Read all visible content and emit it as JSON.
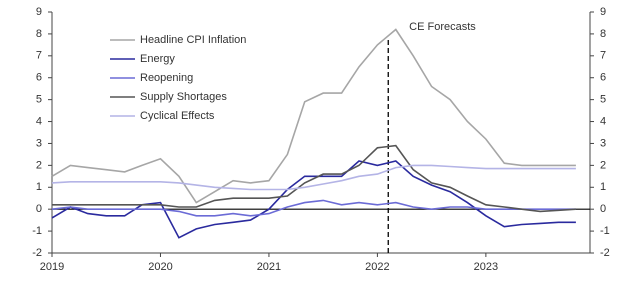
{
  "chart_data": {
    "type": "line",
    "x": [
      2019.0,
      2019.17,
      2019.33,
      2019.5,
      2019.67,
      2019.83,
      2020.0,
      2020.17,
      2020.33,
      2020.5,
      2020.67,
      2020.83,
      2021.0,
      2021.17,
      2021.33,
      2021.5,
      2021.67,
      2021.83,
      2022.0,
      2022.17,
      2022.33,
      2022.5,
      2022.67,
      2022.83,
      2023.0,
      2023.17,
      2023.33,
      2023.5,
      2023.67,
      2023.83
    ],
    "series": [
      {
        "name": "Headline CPI Inflation",
        "color": "#a6a6a6",
        "values": [
          1.5,
          2.0,
          1.9,
          1.8,
          1.7,
          2.0,
          2.3,
          1.5,
          0.3,
          0.8,
          1.3,
          1.2,
          1.3,
          2.5,
          4.9,
          5.3,
          5.3,
          6.5,
          7.5,
          8.2,
          7.0,
          5.6,
          5.0,
          4.0,
          3.2,
          2.1,
          2.0,
          2.0,
          2.0,
          2.0
        ]
      },
      {
        "name": "Energy",
        "color": "#2a2a9e",
        "values": [
          -0.4,
          0.1,
          -0.2,
          -0.3,
          -0.3,
          0.2,
          0.3,
          -1.3,
          -0.9,
          -0.7,
          -0.6,
          -0.5,
          0.0,
          0.9,
          1.5,
          1.5,
          1.5,
          2.2,
          2.0,
          2.2,
          1.5,
          1.1,
          0.8,
          0.3,
          -0.3,
          -0.8,
          -0.7,
          -0.65,
          -0.6,
          -0.6
        ]
      },
      {
        "name": "Reopening",
        "color": "#6b6bd6",
        "values": [
          0.0,
          0.1,
          0.0,
          0.0,
          0.0,
          0.0,
          0.0,
          -0.1,
          -0.3,
          -0.3,
          -0.2,
          -0.3,
          -0.2,
          0.1,
          0.3,
          0.4,
          0.2,
          0.3,
          0.2,
          0.3,
          0.1,
          0.0,
          0.1,
          0.1,
          0.0,
          0.0,
          0.0,
          0.0,
          0.0,
          0.0
        ]
      },
      {
        "name": "Supply Shortages",
        "color": "#555555",
        "values": [
          0.2,
          0.2,
          0.2,
          0.2,
          0.2,
          0.2,
          0.2,
          0.1,
          0.1,
          0.4,
          0.5,
          0.5,
          0.5,
          0.6,
          1.2,
          1.6,
          1.6,
          2.0,
          2.8,
          2.9,
          1.8,
          1.2,
          1.0,
          0.6,
          0.2,
          0.1,
          0.0,
          -0.1,
          -0.05,
          0.0
        ]
      },
      {
        "name": "Cyclical Effects",
        "color": "#b4b4e6",
        "values": [
          1.2,
          1.25,
          1.25,
          1.25,
          1.25,
          1.25,
          1.25,
          1.2,
          1.1,
          1.0,
          0.95,
          0.9,
          0.9,
          0.9,
          1.0,
          1.15,
          1.3,
          1.5,
          1.6,
          1.9,
          2.0,
          2.0,
          1.95,
          1.9,
          1.85,
          1.85,
          1.85,
          1.85,
          1.85,
          1.85
        ]
      }
    ],
    "annotation": "CE Forecasts",
    "forecast_start": 2022.1,
    "xlim": [
      2019,
      2023.96
    ],
    "xticks": [
      2019,
      2020,
      2021,
      2022,
      2023
    ],
    "ylim": [
      -2,
      9
    ],
    "yticks": [
      -2,
      -1,
      0,
      1,
      2,
      3,
      4,
      5,
      6,
      7,
      8,
      9
    ],
    "y2lim": [
      -2,
      9
    ],
    "y2ticks": [
      -2,
      -1,
      0,
      1,
      2,
      3,
      4,
      5,
      6,
      7,
      8,
      9
    ],
    "legend": "top-left"
  }
}
